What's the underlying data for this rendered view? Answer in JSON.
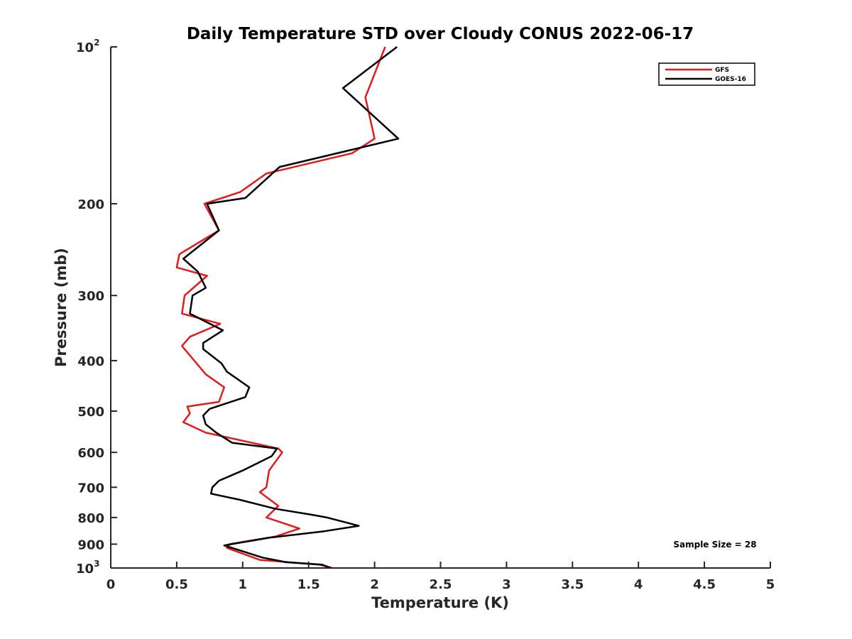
{
  "chart_data": {
    "type": "line",
    "title": "Daily Temperature STD over Cloudy CONUS 2022-06-17",
    "xlabel": "Temperature (K)",
    "ylabel": "Pressure (mb)",
    "xlim": [
      0,
      5
    ],
    "ylim": [
      100,
      1000
    ],
    "y_scale": "log",
    "y_reversed": true,
    "x_ticks": [
      "0",
      "0.5",
      "1",
      "1.5",
      "2",
      "2.5",
      "3",
      "3.5",
      "4",
      "4.5",
      "5"
    ],
    "y_ticks": [
      {
        "value": 100,
        "base": "10",
        "exp": "2"
      },
      {
        "value": 200,
        "label": "200"
      },
      {
        "value": 300,
        "label": "300"
      },
      {
        "value": 400,
        "label": "400"
      },
      {
        "value": 500,
        "label": "500"
      },
      {
        "value": 600,
        "label": "600"
      },
      {
        "value": 700,
        "label": "700"
      },
      {
        "value": 800,
        "label": "800"
      },
      {
        "value": 900,
        "label": "900"
      },
      {
        "value": 1000,
        "base": "10",
        "exp": "3"
      }
    ],
    "legend_position": "top-right",
    "annotation": "Sample Size = 28",
    "series": [
      {
        "name": "GFS",
        "color": "#e41a1c",
        "points": [
          [
            2.08,
            100
          ],
          [
            1.93,
            125
          ],
          [
            2.0,
            150
          ],
          [
            1.83,
            160
          ],
          [
            1.18,
            175
          ],
          [
            0.98,
            190
          ],
          [
            0.71,
            200
          ],
          [
            0.82,
            225
          ],
          [
            0.52,
            250
          ],
          [
            0.5,
            265
          ],
          [
            0.73,
            275
          ],
          [
            0.56,
            300
          ],
          [
            0.54,
            325
          ],
          [
            0.83,
            340
          ],
          [
            0.6,
            360
          ],
          [
            0.54,
            375
          ],
          [
            0.72,
            425
          ],
          [
            0.86,
            450
          ],
          [
            0.82,
            480
          ],
          [
            0.58,
            490
          ],
          [
            0.6,
            505
          ],
          [
            0.55,
            525
          ],
          [
            0.72,
            550
          ],
          [
            1.27,
            590
          ],
          [
            1.3,
            600
          ],
          [
            1.2,
            650
          ],
          [
            1.18,
            700
          ],
          [
            1.13,
            715
          ],
          [
            1.27,
            760
          ],
          [
            1.18,
            800
          ],
          [
            1.43,
            840
          ],
          [
            1.25,
            870
          ],
          [
            0.9,
            900
          ],
          [
            0.88,
            915
          ],
          [
            1.13,
            965
          ],
          [
            1.58,
            985
          ],
          [
            1.68,
            1000
          ]
        ]
      },
      {
        "name": "GOES-16",
        "color": "#000000",
        "points": [
          [
            2.17,
            100
          ],
          [
            1.76,
            120
          ],
          [
            2.18,
            150
          ],
          [
            1.28,
            170
          ],
          [
            1.02,
            195
          ],
          [
            0.73,
            200
          ],
          [
            0.82,
            225
          ],
          [
            0.55,
            255
          ],
          [
            0.66,
            270
          ],
          [
            0.72,
            290
          ],
          [
            0.62,
            300
          ],
          [
            0.6,
            325
          ],
          [
            0.85,
            350
          ],
          [
            0.7,
            370
          ],
          [
            0.7,
            380
          ],
          [
            0.84,
            405
          ],
          [
            0.88,
            420
          ],
          [
            1.05,
            450
          ],
          [
            1.02,
            470
          ],
          [
            0.75,
            495
          ],
          [
            0.7,
            510
          ],
          [
            0.72,
            530
          ],
          [
            0.8,
            550
          ],
          [
            0.92,
            575
          ],
          [
            1.26,
            590
          ],
          [
            1.22,
            610
          ],
          [
            1.0,
            650
          ],
          [
            0.82,
            680
          ],
          [
            0.77,
            700
          ],
          [
            0.76,
            720
          ],
          [
            0.98,
            740
          ],
          [
            1.25,
            770
          ],
          [
            1.52,
            790
          ],
          [
            1.64,
            800
          ],
          [
            1.88,
            830
          ],
          [
            1.62,
            850
          ],
          [
            1.2,
            875
          ],
          [
            0.86,
            905
          ],
          [
            1.15,
            955
          ],
          [
            1.33,
            975
          ],
          [
            1.6,
            985
          ],
          [
            1.67,
            1000
          ]
        ]
      }
    ]
  }
}
